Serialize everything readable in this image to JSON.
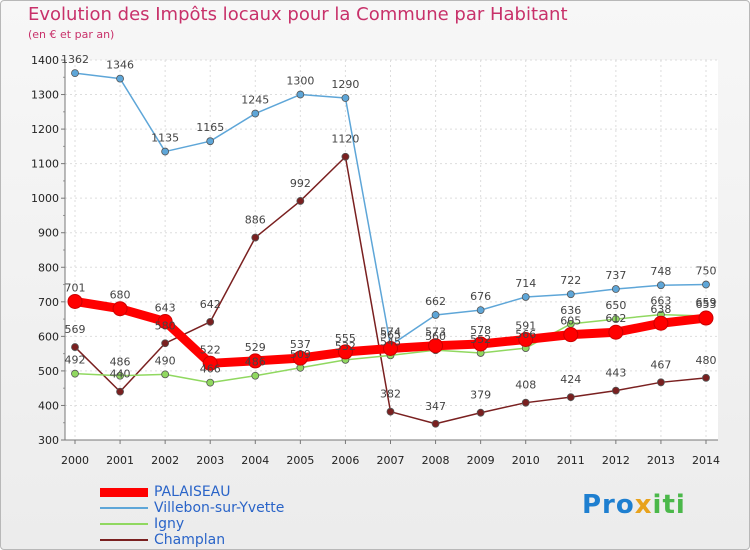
{
  "chart_data": {
    "type": "line",
    "title": "Evolution des Impôts locaux pour la Commune par Habitant",
    "subtitle": "(en € et par an)",
    "xlabel": "",
    "ylabel": "",
    "ylim": [
      300,
      1400
    ],
    "yticks": [
      300,
      400,
      500,
      600,
      700,
      800,
      900,
      1000,
      1100,
      1200,
      1300,
      1400
    ],
    "x": [
      2000,
      2001,
      2002,
      2003,
      2004,
      2005,
      2006,
      2007,
      2008,
      2009,
      2010,
      2011,
      2012,
      2013,
      2014
    ],
    "grid": true,
    "series": [
      {
        "name": "Champlan",
        "color": "#7a2020",
        "values": [
          569,
          440,
          580,
          642,
          886,
          992,
          1120,
          382,
          347,
          379,
          408,
          424,
          443,
          467,
          480
        ]
      },
      {
        "name": "Igny",
        "color": "#90d860",
        "values": [
          492,
          486,
          490,
          466,
          486,
          509,
          532,
          545,
          560,
          552,
          566,
          636,
          650,
          663,
          659
        ]
      },
      {
        "name": "Villebon-sur-Yvette",
        "color": "#5ea6d8",
        "values": [
          1362,
          1346,
          1135,
          1165,
          1245,
          1300,
          1290,
          574,
          662,
          676,
          714,
          722,
          737,
          748,
          750
        ]
      },
      {
        "name": "PALAISEAU",
        "color": "#ff0000",
        "values": [
          701,
          680,
          643,
          522,
          529,
          537,
          555,
          565,
          573,
          578,
          591,
          605,
          612,
          638,
          653
        ]
      }
    ],
    "legend_order": [
      "PALAISEAU",
      "Villebon-sur-Yvette",
      "Igny",
      "Champlan"
    ]
  },
  "logo": {
    "part1": "Pro",
    "part2": "x",
    "part3": "iti"
  }
}
